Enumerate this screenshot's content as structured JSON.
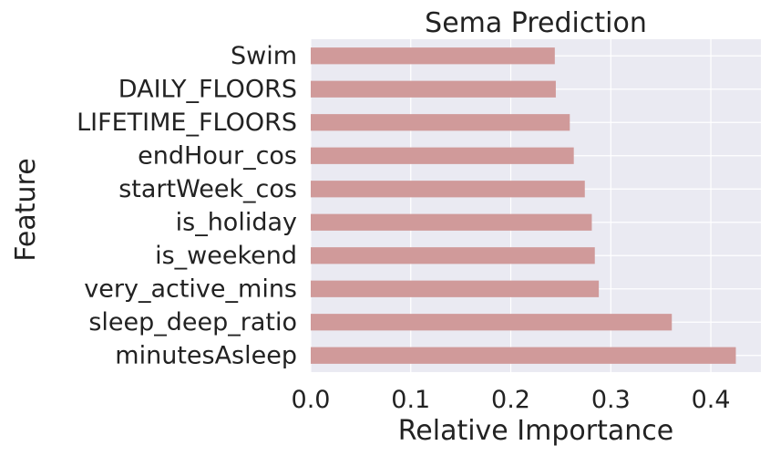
{
  "chart_data": {
    "type": "bar",
    "orientation": "horizontal",
    "title": "Sema Prediction",
    "xlabel": "Relative Importance",
    "ylabel": "Feature",
    "xlim": [
      0.0,
      0.45
    ],
    "xticks": [
      "0.0",
      "0.1",
      "0.2",
      "0.3",
      "0.4"
    ],
    "grid": true,
    "categories": [
      "Swim",
      "DAILY_FLOORS",
      "LIFETIME_FLOORS",
      "endHour_cos",
      "startWeek_cos",
      "is_holiday",
      "is_weekend",
      "very_active_mins",
      "sleep_deep_ratio",
      "minutesAsleep"
    ],
    "values": [
      0.244,
      0.245,
      0.259,
      0.263,
      0.274,
      0.281,
      0.284,
      0.288,
      0.361,
      0.425
    ],
    "colors": {
      "bar": "#d09a9a",
      "plot_background": "#eaeaf2",
      "grid": "#ffffff"
    }
  }
}
